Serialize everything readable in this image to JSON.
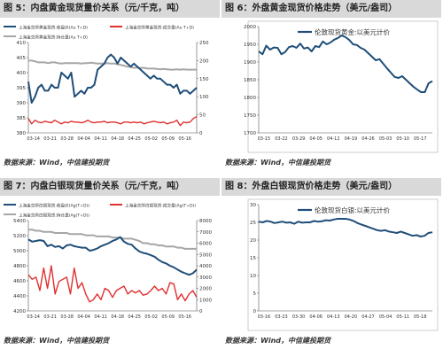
{
  "source_label": "数据来源：Wind，中信建投期货",
  "panels": [
    {
      "title": "图 5：内盘黄金现货量价关系（元/千克，吨）"
    },
    {
      "title": "图 6：外盘黄金现货价格走势（美元/盎司）"
    },
    {
      "title": "图 7：内盘白银现货量价关系（元/千克，吨）"
    },
    {
      "title": "图 8：外盘白银现货价格走势（美元/盎司）"
    }
  ],
  "colors": {
    "navy": "#1f4e79",
    "red": "#e03030",
    "gray": "#a6a6a6"
  },
  "chart_data": [
    {
      "type": "line",
      "xticks": [
        "03-14",
        "03-21",
        "03-28",
        "04-04",
        "04-11",
        "04-18",
        "04-25",
        "05-02",
        "05-09",
        "05-16"
      ],
      "yleft": {
        "min": 380,
        "max": 410,
        "ticks": [
          380,
          385,
          390,
          395,
          400,
          405,
          410
        ]
      },
      "yright": {
        "min": 0,
        "max": 250,
        "ticks": [
          0,
          50,
          100,
          150,
          200,
          250
        ]
      },
      "series": [
        {
          "name": "上海金交所黄金现货:收盘价(Au T+D)",
          "axis": "left",
          "color": "#1f4e79",
          "values": [
            397,
            390,
            392,
            395,
            396,
            394,
            394,
            396,
            395,
            395,
            400,
            399,
            398,
            400,
            392,
            393,
            394,
            393,
            395,
            395,
            396,
            401,
            402,
            403,
            405,
            406,
            405,
            403,
            405,
            404,
            403,
            402,
            403,
            402,
            401,
            400,
            399,
            398,
            399,
            398,
            398,
            397,
            396,
            396,
            395,
            396,
            393,
            394,
            394,
            393,
            394,
            395
          ]
        },
        {
          "name": "上海金交所黄金现货:成交量(Au T+D)",
          "axis": "right",
          "color": "#e03030",
          "values": [
            40,
            25,
            35,
            30,
            28,
            32,
            30,
            28,
            35,
            30,
            25,
            30,
            28,
            32,
            30,
            30,
            28,
            30,
            35,
            30,
            28,
            30,
            30,
            32,
            28,
            30,
            30,
            28,
            25,
            30,
            30,
            28,
            30,
            28,
            30,
            25,
            28,
            30,
            32,
            30,
            28,
            30,
            25,
            28,
            30,
            35,
            20,
            30,
            28,
            30,
            40,
            45
          ]
        },
        {
          "name": "上海金交所黄金现货:持仓量(Au T+D)",
          "axis": "right",
          "color": "#a6a6a6",
          "values": [
            200,
            200,
            198,
            195,
            195,
            195,
            193,
            195,
            195,
            193,
            192,
            193,
            193,
            193,
            193,
            193,
            192,
            193,
            193,
            194,
            193,
            192,
            192,
            192,
            193,
            192,
            192,
            190,
            188,
            186,
            183,
            182,
            180,
            181,
            180,
            180,
            178,
            178,
            178,
            177,
            176,
            177,
            176,
            175,
            175,
            176,
            175,
            176,
            175,
            175,
            175,
            175
          ]
        }
      ]
    },
    {
      "type": "line",
      "xticks": [
        "03-15",
        "03-22",
        "03-29",
        "04-05",
        "04-12",
        "04-19",
        "04-26",
        "05-03",
        "05-10",
        "05-17"
      ],
      "ylim": [
        1700,
        2000
      ],
      "yticks": [
        1700,
        1750,
        1800,
        1850,
        1900,
        1950,
        2000
      ],
      "series": [
        {
          "name": "伦敦现货黄金:以美元计价",
          "color": "#1f4e79",
          "values": [
            1930,
            1922,
            1946,
            1935,
            1941,
            1940,
            1922,
            1928,
            1942,
            1945,
            1940,
            1952,
            1938,
            1941,
            1930,
            1945,
            1942,
            1958,
            1950,
            1955,
            1963,
            1968,
            1975,
            1970,
            1962,
            1950,
            1948,
            1940,
            1935,
            1925,
            1915,
            1905,
            1908,
            1895,
            1882,
            1870,
            1858,
            1855,
            1860,
            1850,
            1840,
            1830,
            1822,
            1815,
            1815,
            1840,
            1846
          ]
        }
      ]
    },
    {
      "type": "line",
      "xticks": [
        "03-14",
        "03-21",
        "03-28",
        "04-04",
        "04-11",
        "04-18",
        "04-25",
        "05-02",
        "05-09",
        "05-16"
      ],
      "yleft": {
        "min": 4200,
        "max": 5400,
        "ticks": [
          4200,
          4400,
          4600,
          4800,
          5000,
          5200,
          5400
        ]
      },
      "yright": {
        "min": 0,
        "max": 8000,
        "ticks": [
          0,
          1000,
          2000,
          3000,
          4000,
          5000,
          6000,
          7000,
          8000
        ]
      },
      "series": [
        {
          "name": "上海金交所白银现货:收盘价(Ag(T+D))",
          "axis": "left",
          "color": "#1f4e79",
          "values": [
            5150,
            5120,
            5130,
            5140,
            5130,
            5060,
            5080,
            5050,
            5060,
            5030,
            5070,
            5080,
            5060,
            5050,
            5040,
            5040,
            5000,
            5010,
            5030,
            5060,
            5080,
            5100,
            5130,
            5150,
            5180,
            5120,
            5090,
            5080,
            5030,
            4990,
            4970,
            4960,
            4940,
            4920,
            4880,
            4850,
            4830,
            4800,
            4780,
            4750,
            4720,
            4700,
            4680,
            4700,
            4750
          ]
        },
        {
          "name": "上海金交所白银现货:成交量(Ag(T+D))",
          "axis": "right",
          "color": "#e03030",
          "values": [
            3200,
            2800,
            3000,
            1800,
            3800,
            2000,
            4000,
            1500,
            2600,
            2800,
            3000,
            1500,
            3800,
            2000,
            2500,
            1500,
            800,
            1000,
            1500,
            1000,
            2000,
            1800,
            1200,
            1800,
            2000,
            2200,
            1500,
            1800,
            1600,
            1800,
            1400,
            1500,
            1800,
            2200,
            1800,
            2000,
            1500,
            2500,
            2400,
            1000,
            1500,
            900,
            1500,
            1800,
            1200
          ]
        },
        {
          "name": "上海金交所白银现货:持仓量(Ag(T+D))",
          "axis": "right",
          "color": "#a6a6a6",
          "values": [
            7200,
            7200,
            7100,
            7100,
            7000,
            7000,
            7000,
            6900,
            6900,
            6900,
            6900,
            6800,
            6800,
            6800,
            6800,
            6700,
            6700,
            6700,
            6600,
            6600,
            6600,
            6600,
            6500,
            6500,
            6500,
            6400,
            6400,
            6400,
            6300,
            6200,
            6000,
            6000,
            5900,
            5900,
            5800,
            5800,
            5700,
            5700,
            5700,
            5600,
            5600,
            5500,
            5500,
            5500,
            5500
          ]
        }
      ]
    },
    {
      "type": "line",
      "xticks": [
        "03-16",
        "03-23",
        "03-30",
        "04-06",
        "04-13",
        "04-20",
        "04-27",
        "05-04",
        "05-11",
        "05-18"
      ],
      "ylim": [
        0,
        30
      ],
      "yticks": [
        0,
        5,
        10,
        15,
        20,
        25,
        30
      ],
      "series": [
        {
          "name": "伦敦现货白银:以美元计价",
          "color": "#1f4e79",
          "values": [
            25.2,
            25.0,
            25.4,
            25.2,
            24.8,
            25.0,
            25.2,
            24.9,
            25.0,
            24.6,
            25.2,
            24.9,
            25.0,
            25.0,
            25.4,
            25.2,
            25.3,
            25.6,
            25.5,
            25.8,
            26.0,
            26.0,
            26.0,
            25.8,
            25.4,
            24.8,
            24.4,
            24.0,
            23.6,
            23.2,
            22.8,
            22.6,
            22.8,
            22.4,
            22.2,
            22.0,
            22.4,
            22.0,
            21.6,
            21.2,
            21.4,
            21.0,
            21.2,
            22.0,
            22.2
          ]
        }
      ]
    }
  ]
}
